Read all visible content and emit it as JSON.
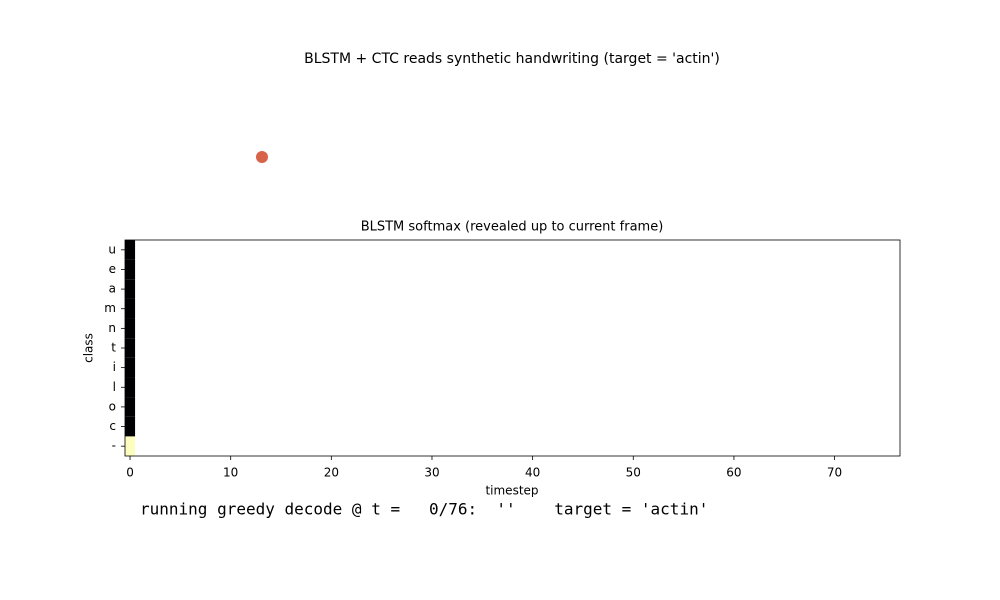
{
  "chart_data": {
    "type": "heatmap",
    "title": "BLSTM + CTC reads synthetic handwriting (target = 'actin')",
    "subtitle": "BLSTM softmax (revealed up to current frame)",
    "x_label": "timestep",
    "y_label": "class",
    "classes": [
      "-",
      "c",
      "o",
      "l",
      "i",
      "t",
      "n",
      "m",
      "a",
      "e",
      "u"
    ],
    "z": [
      [
        1
      ],
      [
        0
      ],
      [
        0
      ],
      [
        0
      ],
      [
        0
      ],
      [
        0
      ],
      [
        0
      ],
      [
        0
      ],
      [
        0
      ],
      [
        0
      ],
      [
        0
      ]
    ],
    "clim": [
      0,
      1
    ],
    "colormap": [
      "#000004",
      "#3b0f70",
      "#8c2981",
      "#de4968",
      "#fe9f6d",
      "#fcfdbf"
    ],
    "xlim": [
      -0.5,
      76.5
    ],
    "xticks": [
      0,
      10,
      20,
      30,
      40,
      50,
      60,
      70
    ],
    "ylim": [
      -0.5,
      10.5
    ],
    "status": "running greedy decode @ t =   0/76:  ''    target = 'actin'"
  }
}
